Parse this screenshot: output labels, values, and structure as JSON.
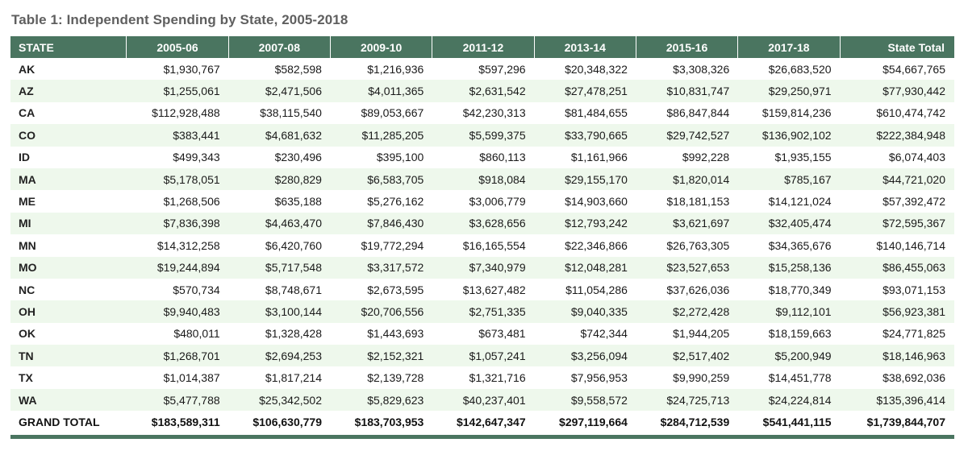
{
  "title": "Table 1: Independent Spending by State, 2005-2018",
  "colors": {
    "header_bg": "#4a7560",
    "row_alt": "#eef8ec"
  },
  "table": {
    "headers": [
      "STATE",
      "2005-06",
      "2007-08",
      "2009-10",
      "2011-12",
      "2013-14",
      "2015-16",
      "2017-18",
      "State Total"
    ],
    "rows": [
      [
        "AK",
        "$1,930,767",
        "$582,598",
        "$1,216,936",
        "$597,296",
        "$20,348,322",
        "$3,308,326",
        "$26,683,520",
        "$54,667,765"
      ],
      [
        "AZ",
        "$1,255,061",
        "$2,471,506",
        "$4,011,365",
        "$2,631,542",
        "$27,478,251",
        "$10,831,747",
        "$29,250,971",
        "$77,930,442"
      ],
      [
        "CA",
        "$112,928,488",
        "$38,115,540",
        "$89,053,667",
        "$42,230,313",
        "$81,484,655",
        "$86,847,844",
        "$159,814,236",
        "$610,474,742"
      ],
      [
        "CO",
        "$383,441",
        "$4,681,632",
        "$11,285,205",
        "$5,599,375",
        "$33,790,665",
        "$29,742,527",
        "$136,902,102",
        "$222,384,948"
      ],
      [
        "ID",
        "$499,343",
        "$230,496",
        "$395,100",
        "$860,113",
        "$1,161,966",
        "$992,228",
        "$1,935,155",
        "$6,074,403"
      ],
      [
        "MA",
        "$5,178,051",
        "$280,829",
        "$6,583,705",
        "$918,084",
        "$29,155,170",
        "$1,820,014",
        "$785,167",
        "$44,721,020"
      ],
      [
        "ME",
        "$1,268,506",
        "$635,188",
        "$5,276,162",
        "$3,006,779",
        "$14,903,660",
        "$18,181,153",
        "$14,121,024",
        "$57,392,472"
      ],
      [
        "MI",
        "$7,836,398",
        "$4,463,470",
        "$7,846,430",
        "$3,628,656",
        "$12,793,242",
        "$3,621,697",
        "$32,405,474",
        "$72,595,367"
      ],
      [
        "MN",
        "$14,312,258",
        "$6,420,760",
        "$19,772,294",
        "$16,165,554",
        "$22,346,866",
        "$26,763,305",
        "$34,365,676",
        "$140,146,714"
      ],
      [
        "MO",
        "$19,244,894",
        "$5,717,548",
        "$3,317,572",
        "$7,340,979",
        "$12,048,281",
        "$23,527,653",
        "$15,258,136",
        "$86,455,063"
      ],
      [
        "NC",
        "$570,734",
        "$8,748,671",
        "$2,673,595",
        "$13,627,482",
        "$11,054,286",
        "$37,626,036",
        "$18,770,349",
        "$93,071,153"
      ],
      [
        "OH",
        "$9,940,483",
        "$3,100,144",
        "$20,706,556",
        "$2,751,335",
        "$9,040,335",
        "$2,272,428",
        "$9,112,101",
        "$56,923,381"
      ],
      [
        "OK",
        "$480,011",
        "$1,328,428",
        "$1,443,693",
        "$673,481",
        "$742,344",
        "$1,944,205",
        "$18,159,663",
        "$24,771,825"
      ],
      [
        "TN",
        "$1,268,701",
        "$2,694,253",
        "$2,152,321",
        "$1,057,241",
        "$3,256,094",
        "$2,517,402",
        "$5,200,949",
        "$18,146,963"
      ],
      [
        "TX",
        "$1,014,387",
        "$1,817,214",
        "$2,139,728",
        "$1,321,716",
        "$7,956,953",
        "$9,990,259",
        "$14,451,778",
        "$38,692,036"
      ],
      [
        "WA",
        "$5,477,788",
        "$25,342,502",
        "$5,829,623",
        "$40,237,401",
        "$9,558,572",
        "$24,725,713",
        "$24,224,814",
        "$135,396,414"
      ]
    ],
    "grand_total": [
      "GRAND TOTAL",
      "$183,589,311",
      "$106,630,779",
      "$183,703,953",
      "$142,647,347",
      "$297,119,664",
      "$284,712,539",
      "$541,441,115",
      "$1,739,844,707"
    ]
  }
}
